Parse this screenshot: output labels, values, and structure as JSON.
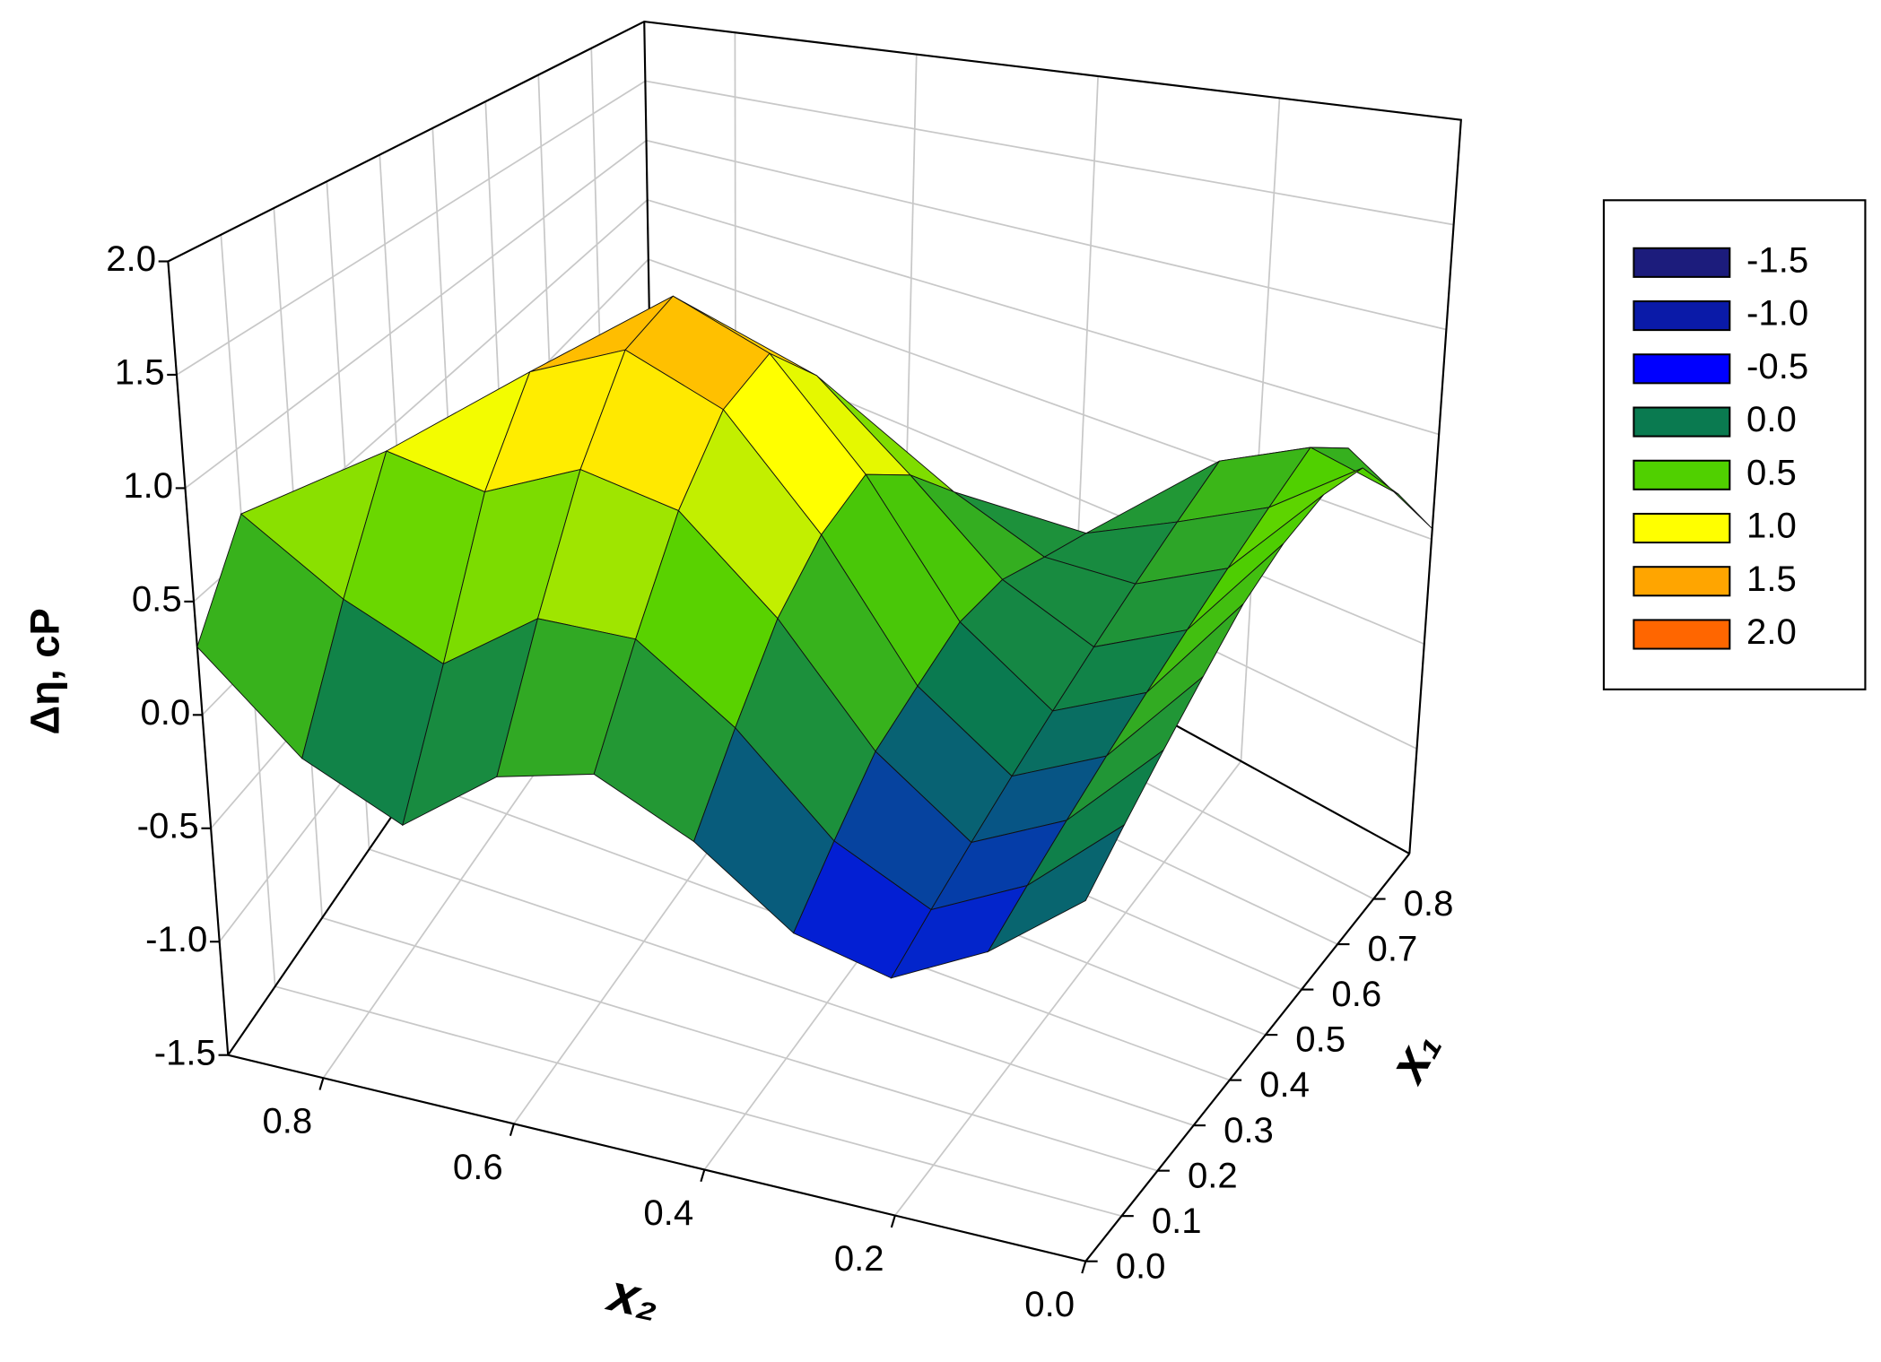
{
  "chart_data": {
    "type": "surface",
    "x_label": "x₁",
    "y_label": "x₂",
    "z_label": "Δη, cP",
    "x": [
      0,
      0.1,
      0.2,
      0.3,
      0.4,
      0.5,
      0.6,
      0.7,
      0.8,
      0.9
    ],
    "y": [
      0,
      0.1,
      0.2,
      0.3,
      0.4,
      0.5,
      0.6,
      0.7,
      0.8,
      0.9
    ],
    "z": [
      [
        0.0,
        0.15,
        0.3,
        0.45,
        0.6,
        0.7,
        0.75,
        0.7,
        0.4,
        0.05
      ],
      [
        -0.3,
        -0.2,
        -0.1,
        0.0,
        0.1,
        0.2,
        0.3,
        0.4,
        0.5,
        0.3
      ],
      [
        -0.5,
        -0.4,
        -0.3,
        -0.2,
        -0.1,
        0.0,
        0.1,
        0.2,
        0.3,
        null
      ],
      [
        -0.4,
        -0.2,
        0.0,
        0.1,
        0.2,
        0.2,
        0.1,
        0.0,
        null,
        null
      ],
      [
        -0.1,
        0.2,
        0.5,
        0.7,
        0.8,
        0.6,
        0.3,
        null,
        null,
        null
      ],
      [
        0.1,
        0.5,
        0.9,
        1.2,
        1.3,
        1.0,
        null,
        null,
        null,
        null
      ],
      [
        0.0,
        0.5,
        1.0,
        1.4,
        1.5,
        null,
        null,
        null,
        null,
        null
      ],
      [
        -0.3,
        0.2,
        0.8,
        1.2,
        null,
        null,
        null,
        null,
        null,
        null
      ],
      [
        -0.1,
        0.4,
        0.9,
        null,
        null,
        null,
        null,
        null,
        null,
        null
      ],
      [
        0.3,
        0.7,
        null,
        null,
        null,
        null,
        null,
        null,
        null,
        null
      ]
    ],
    "xlim": [
      0,
      0.9
    ],
    "ylim": [
      0,
      0.9
    ],
    "zlim": [
      -1.5,
      2
    ],
    "xticks": [
      {
        "value": 0,
        "label": "0.0"
      },
      0.1,
      0.2,
      0.3,
      0.4,
      0.5,
      0.6,
      0.7,
      0.8
    ],
    "yticks": [
      {
        "value": 0,
        "label": "0.0"
      },
      0.2,
      0.4,
      0.6,
      0.8
    ],
    "zticks": [
      -1.5,
      {
        "value": -1,
        "label": "-1.0"
      },
      -0.5,
      {
        "value": 0,
        "label": "0.0"
      },
      0.5,
      {
        "value": 1,
        "label": "1.0"
      },
      1.5,
      {
        "value": 2,
        "label": "2.0"
      }
    ],
    "colorscale": [
      {
        "value": -1.5,
        "label": "-1.5",
        "color": "#1c1c7c"
      },
      {
        "value": -1,
        "label": "-1.0",
        "color": "#0a1aa8"
      },
      {
        "value": -0.5,
        "label": "-0.5",
        "color": "#0000ff"
      },
      {
        "value": 0,
        "label": "0.0",
        "color": "#0a7a50"
      },
      {
        "value": 0.5,
        "label": "0.5",
        "color": "#50d000"
      },
      {
        "value": 1,
        "label": "1.0",
        "color": "#ffff00"
      },
      {
        "value": 1.5,
        "label": "1.5",
        "color": "#ffa500"
      },
      {
        "value": 2,
        "label": "2.0",
        "color": "#ff6600"
      }
    ],
    "grid": true
  }
}
